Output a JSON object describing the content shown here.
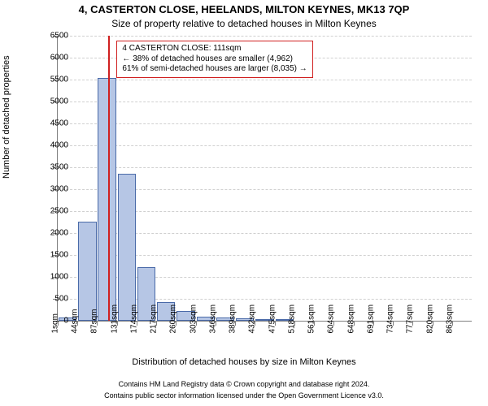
{
  "title_main": "4, CASTERTON CLOSE, HEELANDS, MILTON KEYNES, MK13 7QP",
  "title_sub": "Size of property relative to detached houses in Milton Keynes",
  "y_axis_title": "Number of detached properties",
  "x_axis_title": "Distribution of detached houses by size in Milton Keynes",
  "footer1": "Contains HM Land Registry data © Crown copyright and database right 2024.",
  "footer2": "Contains public sector information licensed under the Open Government Licence v3.0.",
  "chart": {
    "type": "histogram",
    "ylim": [
      0,
      6500
    ],
    "ytick_step": 500,
    "background_color": "#ffffff",
    "grid_color": "#d0d0d0",
    "axis_color": "#808080",
    "bar_fill": "#b6c6e5",
    "bar_border": "#4a6aa8",
    "marker_color": "#d02020",
    "callout_border": "#d02020",
    "label_fontsize": 10,
    "title_fontsize": 13,
    "x_labels": [
      "1sqm",
      "44sqm",
      "87sqm",
      "131sqm",
      "174sqm",
      "217sqm",
      "260sqm",
      "303sqm",
      "346sqm",
      "389sqm",
      "432sqm",
      "475sqm",
      "518sqm",
      "561sqm",
      "604sqm",
      "648sqm",
      "691sqm",
      "734sqm",
      "777sqm",
      "820sqm",
      "863sqm"
    ],
    "values": [
      80,
      2260,
      5530,
      3350,
      1230,
      430,
      230,
      100,
      80,
      50,
      30,
      30,
      0,
      0,
      0,
      0,
      0,
      0,
      0,
      0,
      0
    ],
    "marker_value_sqm": 111,
    "x_max_sqm": 905,
    "callout": {
      "line1": "4 CASTERTON CLOSE: 111sqm",
      "line2": "← 38% of detached houses are smaller (4,962)",
      "line3": "61% of semi-detached houses are larger (8,035) →"
    }
  }
}
